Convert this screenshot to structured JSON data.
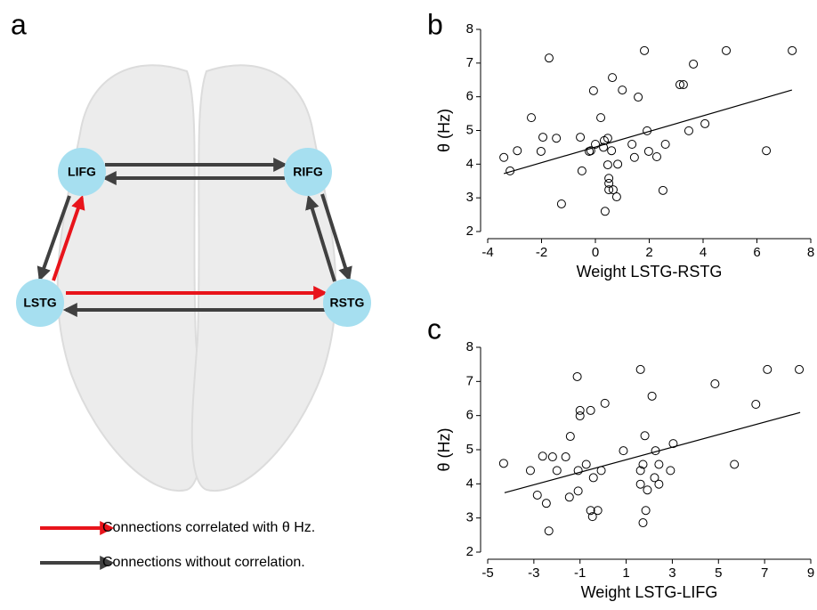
{
  "diagram": {
    "panel_label": "a",
    "nodes": [
      {
        "label": "LIFG"
      },
      {
        "label": "RIFG"
      },
      {
        "label": "LSTG"
      },
      {
        "label": "RSTG"
      }
    ],
    "legend": [
      {
        "label": "Connections correlated with θ Hz.",
        "color": "#e8141b"
      },
      {
        "label": "Connections without correlation.",
        "color": "#404040"
      }
    ]
  },
  "chart_data": [
    {
      "type": "scatter",
      "panel_label": "b",
      "x_label": "Weight LSTG-RSTG",
      "y_label": "θ (Hz)",
      "xlim": [
        -4,
        8
      ],
      "xticks": [
        -4,
        -2,
        0,
        2,
        4,
        6,
        8
      ],
      "ylim": [
        2,
        8
      ],
      "yticks": [
        2,
        3,
        4,
        5,
        6,
        7,
        8
      ],
      "x": [
        -3.4,
        -3.17,
        -1.72,
        -2.38,
        -2.9,
        -1.95,
        -2.02,
        -1.26,
        -1.45,
        -0.56,
        -0.5,
        -0.23,
        -0.17,
        -0.07,
        0,
        0.2,
        0.33,
        0.46,
        0.3,
        0.46,
        0.5,
        0.5,
        0.5,
        0.66,
        0.79,
        0.36,
        0.6,
        0.63,
        0.83,
        1.0,
        1.36,
        1.45,
        1.59,
        1.82,
        1.92,
        1.98,
        2.28,
        2.51,
        2.6,
        3.14,
        3.27,
        3.47,
        3.64,
        4.07,
        4.86,
        6.35,
        7.31
      ],
      "values": [
        4.2,
        3.8,
        7.15,
        5.38,
        4.4,
        4.8,
        4.38,
        2.82,
        4.77,
        4.8,
        3.8,
        4.38,
        4.4,
        6.18,
        4.59,
        5.38,
        4.7,
        4.77,
        4.5,
        3.98,
        3.58,
        3.43,
        3.24,
        3.24,
        3.03,
        2.6,
        4.4,
        6.57,
        4.0,
        6.2,
        4.59,
        4.2,
        5.99,
        7.37,
        4.99,
        4.38,
        4.22,
        3.22,
        4.59,
        6.36,
        6.36,
        4.99,
        6.97,
        5.2,
        7.37,
        4.4,
        7.37
      ],
      "fit": {
        "x": [
          -3.4,
          7.3
        ],
        "values": [
          3.72,
          6.2
        ]
      }
    },
    {
      "type": "scatter",
      "panel_label": "c",
      "x_label": "Weight LSTG-LIFG",
      "y_label": "θ (Hz)",
      "xlim": [
        -5,
        9
      ],
      "xticks": [
        -5,
        -3,
        -1,
        1,
        3,
        5,
        7,
        9
      ],
      "ylim": [
        2,
        8
      ],
      "yticks": [
        2,
        3,
        4,
        5,
        6,
        7,
        8
      ],
      "x": [
        -4.31,
        -3.15,
        -2.85,
        -2.62,
        -2.46,
        -2.35,
        -2.19,
        -2.0,
        -1.62,
        -1.42,
        -1.46,
        -1.12,
        -1.0,
        -1.0,
        -1.08,
        -1.08,
        -0.73,
        -0.54,
        -0.54,
        -0.46,
        -0.23,
        -0.42,
        -0.08,
        0.08,
        0.88,
        1.62,
        1.62,
        1.62,
        1.73,
        1.81,
        1.85,
        1.73,
        1.92,
        2.12,
        2.27,
        2.23,
        2.42,
        2.42,
        2.92,
        3.04,
        4.85,
        5.69,
        6.62,
        7.12,
        8.5
      ],
      "values": [
        4.6,
        4.39,
        3.67,
        4.81,
        3.43,
        2.62,
        4.79,
        4.39,
        4.79,
        5.39,
        3.61,
        7.14,
        6.15,
        5.99,
        4.39,
        3.79,
        4.57,
        6.15,
        3.22,
        3.04,
        3.22,
        4.18,
        4.39,
        6.36,
        4.97,
        7.35,
        4.39,
        3.99,
        4.57,
        5.41,
        3.22,
        2.86,
        3.82,
        6.57,
        4.97,
        4.18,
        3.99,
        4.57,
        4.39,
        5.18,
        6.93,
        4.57,
        6.33,
        7.35,
        7.35
      ],
      "fit": {
        "x": [
          -4.27,
          8.54
        ],
        "values": [
          3.74,
          6.09
        ]
      }
    }
  ]
}
